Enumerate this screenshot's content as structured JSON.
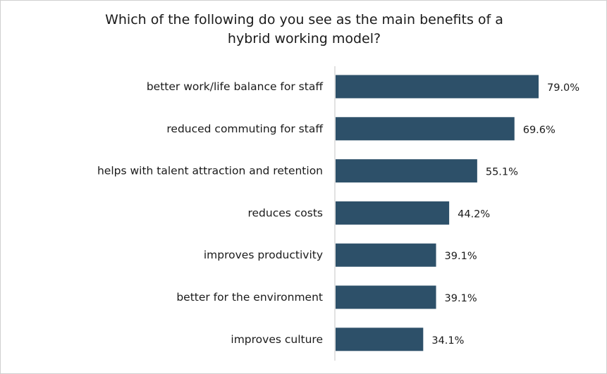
{
  "chart_data": {
    "type": "bar",
    "orientation": "horizontal",
    "title_lines": [
      "Which of the following do you see as the main benefits of a",
      "hybrid working model?"
    ],
    "categories": [
      "better work/life balance for staff",
      "reduced commuting for staff",
      "helps with talent attraction and retention",
      "reduces costs",
      "improves productivity",
      "better for the environment",
      "improves culture"
    ],
    "values": [
      79.0,
      69.6,
      55.1,
      44.2,
      39.1,
      39.1,
      34.1
    ],
    "value_labels": [
      "79.0%",
      "69.6%",
      "55.1%",
      "44.2%",
      "39.1%",
      "39.1%",
      "34.1%"
    ],
    "xlabel": "",
    "ylabel": "",
    "xlim": [
      0,
      100
    ],
    "grid": false,
    "legend": "none",
    "bar_color": "#2d5069",
    "axis_color": "#d9d9d9"
  }
}
